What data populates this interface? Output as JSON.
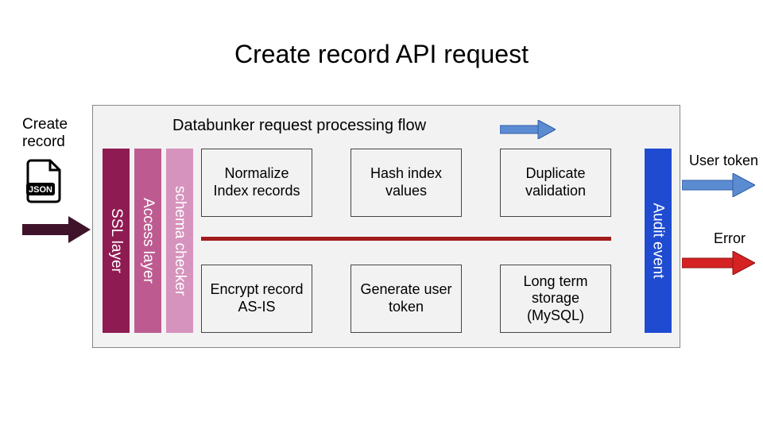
{
  "title": "Create record API request",
  "container": {
    "flow_label": "Databunker request processing flow",
    "bg": "#f2f2f2",
    "border": "#888888",
    "flow_arrow_color": "#5b8bd0"
  },
  "input": {
    "label": "Create\nrecord",
    "icon_name": "json-file",
    "arrow_color": "#3f142b"
  },
  "layers": {
    "ssl": {
      "label": "SSL layer",
      "color": "#8f1b53"
    },
    "access": {
      "label": "Access layer",
      "color": "#bd5b91"
    },
    "schema": {
      "label": "schema checker",
      "color": "#d693bd"
    },
    "audit": {
      "label": "Audit event",
      "color": "#1f4bd1"
    }
  },
  "steps": {
    "top": [
      {
        "label": "Normalize Index records"
      },
      {
        "label": "Hash index values"
      },
      {
        "label": "Duplicate validation"
      }
    ],
    "bottom": [
      {
        "label": "Encrypt record AS-IS"
      },
      {
        "label": "Generate user token"
      },
      {
        "label": "Long term storage (MySQL)"
      }
    ],
    "divider_color": "#a11c1c",
    "box_border": "#444444",
    "box_bg": "#f2f2f2",
    "fontsize": 18
  },
  "outputs": {
    "ok": {
      "label": "User token",
      "color": "#5b8bd0"
    },
    "error": {
      "label": "Error",
      "color": "#d62222"
    }
  }
}
